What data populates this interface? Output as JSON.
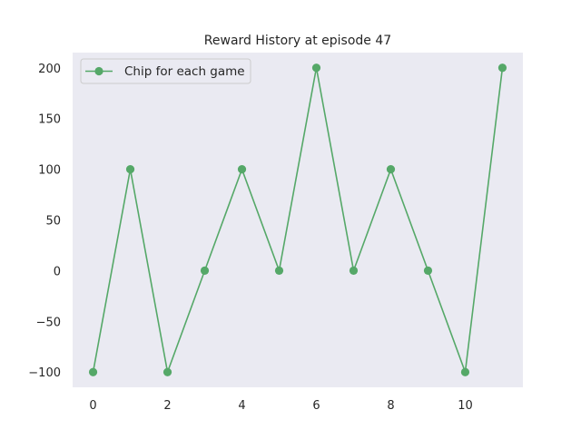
{
  "chart_data": {
    "type": "line",
    "title": "Reward History at episode 47",
    "xlabel": "",
    "ylabel": "",
    "x": [
      0,
      1,
      2,
      3,
      4,
      5,
      6,
      7,
      8,
      9,
      10,
      11
    ],
    "series": [
      {
        "name": "Chip for each game",
        "values": [
          -100,
          100,
          -100,
          0,
          100,
          0,
          200,
          0,
          100,
          0,
          -100,
          200
        ],
        "color": "#55a868",
        "marker": "circle"
      }
    ],
    "xlim": [
      -0.55,
      11.55
    ],
    "ylim": [
      -115,
      215
    ],
    "xticks": [
      0,
      2,
      4,
      6,
      8,
      10
    ],
    "xtick_labels": [
      "0",
      "2",
      "4",
      "6",
      "8",
      "10"
    ],
    "yticks": [
      -100,
      -50,
      0,
      50,
      100,
      150,
      200
    ],
    "ytick_labels": [
      "−100",
      "−50",
      "0",
      "50",
      "100",
      "150",
      "200"
    ],
    "grid": false,
    "legend_position": "top-left",
    "background_color": "#eaeaf2"
  }
}
